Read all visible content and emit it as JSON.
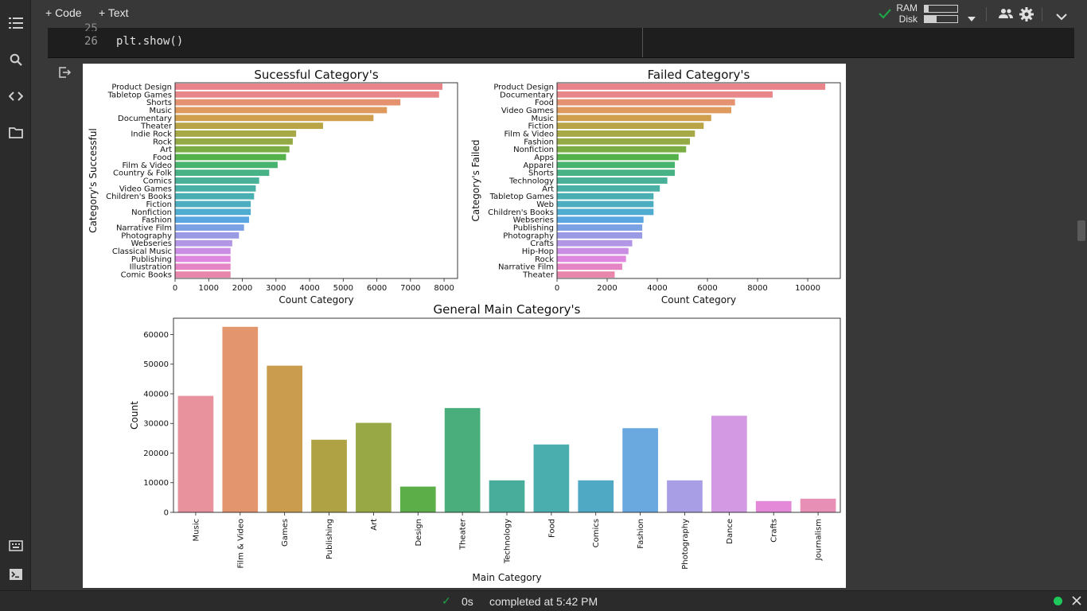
{
  "toolbar": {
    "code_label": "+ Code",
    "text_label": "+ Text",
    "ram_label": "RAM",
    "disk_label": "Disk"
  },
  "codecell": {
    "line_prev": "25",
    "line_no": "26",
    "code": "plt.show()"
  },
  "status": {
    "check": "✓",
    "time": "0s",
    "completed": "completed at 5:42 PM"
  },
  "colors": {
    "accent": "#1ea446",
    "status_dot": "#1ec85a"
  },
  "chart_data": [
    {
      "type": "bar",
      "orientation": "horizontal",
      "title": "Sucessful Category's",
      "xlabel": "Count Category",
      "ylabel": "Category's Successful",
      "xlim": [
        0,
        8400
      ],
      "xticks": [
        0,
        1000,
        2000,
        3000,
        4000,
        5000,
        6000,
        7000,
        8000
      ],
      "categories": [
        "Product Design",
        "Tabletop Games",
        "Shorts",
        "Music",
        "Documentary",
        "Theater",
        "Indie Rock",
        "Rock",
        "Art",
        "Food",
        "Film & Video",
        "Country & Folk",
        "Comics",
        "Video Games",
        "Children's Books",
        "Fiction",
        "Nonfiction",
        "Fashion",
        "Narrative Film",
        "Photography",
        "Webseries",
        "Classical Music",
        "Publishing",
        "Illustration",
        "Comic Books"
      ],
      "values": [
        7950,
        7850,
        6700,
        6300,
        5900,
        4400,
        3600,
        3500,
        3400,
        3300,
        3050,
        2800,
        2500,
        2400,
        2350,
        2250,
        2250,
        2200,
        2050,
        1900,
        1700,
        1650,
        1650,
        1650,
        1650
      ]
    },
    {
      "type": "bar",
      "orientation": "horizontal",
      "title": "Failed Category's",
      "xlabel": "Count Category",
      "ylabel": "Category's Failed",
      "xlim": [
        0,
        11300
      ],
      "xticks": [
        0,
        2000,
        4000,
        6000,
        8000,
        10000
      ],
      "categories": [
        "Product Design",
        "Documentary",
        "Food",
        "Video Games",
        "Music",
        "Fiction",
        "Film & Video",
        "Fashion",
        "Nonfiction",
        "Apps",
        "Apparel",
        "Shorts",
        "Technology",
        "Art",
        "Tabletop Games",
        "Web",
        "Children's Books",
        "Webseries",
        "Publishing",
        "Photography",
        "Crafts",
        "Hip-Hop",
        "Rock",
        "Narrative Film",
        "Theater"
      ],
      "values": [
        10700,
        8600,
        7100,
        6950,
        6150,
        5850,
        5500,
        5300,
        5150,
        4850,
        4700,
        4700,
        4400,
        4100,
        3850,
        3850,
        3850,
        3450,
        3400,
        3400,
        3000,
        2850,
        2750,
        2600,
        2300
      ]
    },
    {
      "type": "bar",
      "orientation": "vertical",
      "title": "General Main Category's",
      "xlabel": "Main Category",
      "ylabel": "Count",
      "ylim": [
        0,
        65500
      ],
      "yticks": [
        0,
        10000,
        20000,
        30000,
        40000,
        50000,
        60000
      ],
      "categories": [
        "Music",
        "Film & Video",
        "Games",
        "Publishing",
        "Art",
        "Design",
        "Theater",
        "Technology",
        "Food",
        "Comics",
        "Fashion",
        "Photography",
        "Dance",
        "Crafts",
        "Journalism"
      ],
      "values": [
        39300,
        62600,
        49500,
        24500,
        30200,
        8700,
        35200,
        10800,
        22900,
        10800,
        28400,
        10800,
        32600,
        3800,
        4600
      ]
    }
  ]
}
